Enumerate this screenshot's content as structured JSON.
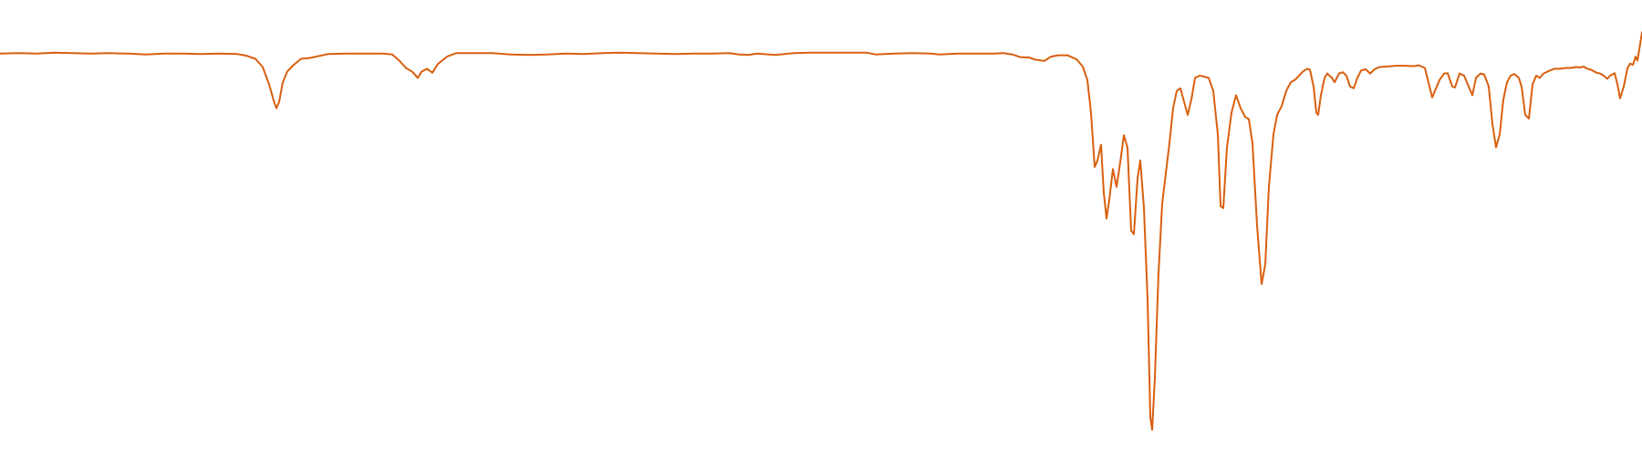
{
  "chart_data": {
    "type": "line",
    "title": "",
    "xlabel": "",
    "ylabel": "",
    "axes_visible": false,
    "grid": false,
    "legend": "none",
    "xlim": [
      0,
      1800
    ],
    "ylim": [
      0,
      100
    ],
    "series": [
      {
        "color": "#d95f0e",
        "points": [
          [
            0,
            90.6
          ],
          [
            20,
            90.7
          ],
          [
            40,
            90.6
          ],
          [
            60,
            90.8
          ],
          [
            80,
            90.7
          ],
          [
            100,
            90.6
          ],
          [
            120,
            90.7
          ],
          [
            140,
            90.6
          ],
          [
            160,
            90.4
          ],
          [
            180,
            90.6
          ],
          [
            200,
            90.6
          ],
          [
            220,
            90.5
          ],
          [
            240,
            90.6
          ],
          [
            260,
            90.5
          ],
          [
            270,
            90.1
          ],
          [
            280,
            89.4
          ],
          [
            288,
            87.5
          ],
          [
            295,
            83.5
          ],
          [
            300,
            79.8
          ],
          [
            303,
            78.0
          ],
          [
            306,
            79.5
          ],
          [
            310,
            84.0
          ],
          [
            315,
            86.5
          ],
          [
            322,
            88.0
          ],
          [
            330,
            89.4
          ],
          [
            340,
            89.6
          ],
          [
            360,
            90.5
          ],
          [
            380,
            90.6
          ],
          [
            400,
            90.6
          ],
          [
            420,
            90.6
          ],
          [
            430,
            90.4
          ],
          [
            438,
            88.9
          ],
          [
            445,
            87.3
          ],
          [
            452,
            86.4
          ],
          [
            458,
            85.0
          ],
          [
            462,
            86.4
          ],
          [
            468,
            87.1
          ],
          [
            474,
            86.2
          ],
          [
            480,
            88.2
          ],
          [
            490,
            89.9
          ],
          [
            500,
            90.7
          ],
          [
            520,
            90.7
          ],
          [
            540,
            90.7
          ],
          [
            560,
            90.4
          ],
          [
            580,
            90.3
          ],
          [
            600,
            90.4
          ],
          [
            620,
            90.6
          ],
          [
            640,
            90.5
          ],
          [
            660,
            90.7
          ],
          [
            680,
            90.8
          ],
          [
            700,
            90.7
          ],
          [
            720,
            90.6
          ],
          [
            740,
            90.5
          ],
          [
            760,
            90.6
          ],
          [
            780,
            90.6
          ],
          [
            800,
            90.7
          ],
          [
            810,
            90.4
          ],
          [
            820,
            90.3
          ],
          [
            830,
            90.6
          ],
          [
            850,
            90.3
          ],
          [
            870,
            90.7
          ],
          [
            890,
            90.8
          ],
          [
            910,
            90.8
          ],
          [
            930,
            90.8
          ],
          [
            950,
            90.8
          ],
          [
            960,
            90.4
          ],
          [
            980,
            90.6
          ],
          [
            1000,
            90.7
          ],
          [
            1020,
            90.6
          ],
          [
            1030,
            90.4
          ],
          [
            1050,
            90.6
          ],
          [
            1070,
            90.6
          ],
          [
            1090,
            90.6
          ],
          [
            1100,
            90.7
          ],
          [
            1110,
            90.4
          ],
          [
            1118,
            89.8
          ],
          [
            1128,
            89.7
          ],
          [
            1135,
            89.2
          ],
          [
            1145,
            88.9
          ],
          [
            1152,
            89.9
          ],
          [
            1160,
            90.2
          ],
          [
            1170,
            90.2
          ],
          [
            1180,
            89.3
          ],
          [
            1187,
            87.6
          ],
          [
            1192,
            84.5
          ],
          [
            1196,
            77.0
          ],
          [
            1200,
            64.5
          ],
          [
            1203,
            65.9
          ],
          [
            1207,
            69.6
          ],
          [
            1210,
            58.5
          ],
          [
            1213,
            52.6
          ],
          [
            1216,
            56.9
          ],
          [
            1220,
            64.0
          ],
          [
            1224,
            59.9
          ],
          [
            1228,
            65.5
          ],
          [
            1232,
            71.8
          ],
          [
            1236,
            68.9
          ],
          [
            1240,
            49.8
          ],
          [
            1243,
            49.0
          ],
          [
            1247,
            61.8
          ],
          [
            1250,
            66.0
          ],
          [
            1254,
            55.0
          ],
          [
            1258,
            34.0
          ],
          [
            1261,
            7.0
          ],
          [
            1263,
            3.9
          ],
          [
            1266,
            16.0
          ],
          [
            1270,
            40.0
          ],
          [
            1274,
            56.0
          ],
          [
            1278,
            63.0
          ],
          [
            1282,
            70.0
          ],
          [
            1286,
            78.0
          ],
          [
            1290,
            82.0
          ],
          [
            1294,
            82.6
          ],
          [
            1298,
            79.5
          ],
          [
            1302,
            76.5
          ],
          [
            1306,
            80.0
          ],
          [
            1310,
            85.0
          ],
          [
            1315,
            85.5
          ],
          [
            1320,
            85.3
          ],
          [
            1325,
            85.0
          ],
          [
            1330,
            82.0
          ],
          [
            1335,
            72.0
          ],
          [
            1338,
            55.5
          ],
          [
            1341,
            55.0
          ],
          [
            1345,
            69.0
          ],
          [
            1350,
            77.0
          ],
          [
            1355,
            81.0
          ],
          [
            1360,
            78.0
          ],
          [
            1365,
            76.0
          ],
          [
            1369,
            75.5
          ],
          [
            1373,
            70.0
          ],
          [
            1378,
            51.0
          ],
          [
            1383,
            37.5
          ],
          [
            1387,
            42.0
          ],
          [
            1391,
            60.0
          ],
          [
            1396,
            72.0
          ],
          [
            1400,
            76.5
          ],
          [
            1405,
            78.5
          ],
          [
            1410,
            82.0
          ],
          [
            1415,
            84.0
          ],
          [
            1420,
            84.6
          ],
          [
            1428,
            86.4
          ],
          [
            1433,
            87.1
          ],
          [
            1436,
            86.9
          ],
          [
            1440,
            83.0
          ],
          [
            1443,
            77.0
          ],
          [
            1445,
            76.5
          ],
          [
            1448,
            81.0
          ],
          [
            1452,
            85.0
          ],
          [
            1455,
            86.0
          ],
          [
            1460,
            85.0
          ],
          [
            1463,
            84.0
          ],
          [
            1468,
            86.0
          ],
          [
            1472,
            86.3
          ],
          [
            1476,
            85.5
          ],
          [
            1480,
            83.0
          ],
          [
            1484,
            82.6
          ],
          [
            1488,
            85.0
          ],
          [
            1492,
            86.7
          ],
          [
            1497,
            87.0
          ],
          [
            1502,
            86.0
          ],
          [
            1507,
            87.0
          ],
          [
            1512,
            87.5
          ],
          [
            1520,
            87.6
          ],
          [
            1530,
            87.8
          ],
          [
            1540,
            87.8
          ],
          [
            1550,
            87.7
          ],
          [
            1555,
            87.9
          ],
          [
            1562,
            87.3
          ],
          [
            1567,
            83.0
          ],
          [
            1570,
            80.5
          ],
          [
            1574,
            82.5
          ],
          [
            1578,
            84.5
          ],
          [
            1583,
            86.0
          ],
          [
            1587,
            86.1
          ],
          [
            1592,
            83.0
          ],
          [
            1595,
            82.8
          ],
          [
            1600,
            86.0
          ],
          [
            1605,
            85.5
          ],
          [
            1610,
            83.0
          ],
          [
            1614,
            81.0
          ],
          [
            1618,
            85.0
          ],
          [
            1623,
            86.0
          ],
          [
            1627,
            85.8
          ],
          [
            1632,
            83.0
          ],
          [
            1636,
            74.5
          ],
          [
            1640,
            69.0
          ],
          [
            1644,
            72.0
          ],
          [
            1648,
            80.0
          ],
          [
            1652,
            84.0
          ],
          [
            1656,
            85.5
          ],
          [
            1660,
            85.9
          ],
          [
            1665,
            85.0
          ],
          [
            1668,
            83.0
          ],
          [
            1672,
            76.5
          ],
          [
            1676,
            75.6
          ],
          [
            1680,
            83.5
          ],
          [
            1684,
            85.5
          ],
          [
            1688,
            85.0
          ],
          [
            1692,
            86.0
          ],
          [
            1698,
            86.6
          ],
          [
            1704,
            87.1
          ],
          [
            1710,
            87.1
          ],
          [
            1716,
            87.3
          ],
          [
            1722,
            87.3
          ],
          [
            1728,
            87.5
          ],
          [
            1732,
            87.4
          ],
          [
            1736,
            87.6
          ],
          [
            1740,
            87.1
          ],
          [
            1744,
            86.9
          ],
          [
            1750,
            86.2
          ],
          [
            1754,
            86.0
          ],
          [
            1758,
            85.5
          ],
          [
            1762,
            84.8
          ],
          [
            1765,
            85.5
          ],
          [
            1770,
            86.1
          ],
          [
            1773,
            83.6
          ],
          [
            1776,
            80.3
          ],
          [
            1780,
            83.0
          ],
          [
            1784,
            87.2
          ],
          [
            1787,
            88.3
          ],
          [
            1790,
            88.0
          ],
          [
            1793,
            89.9
          ],
          [
            1795,
            89.0
          ],
          [
            1797,
            91.5
          ],
          [
            1800,
            95.5
          ]
        ]
      }
    ]
  }
}
